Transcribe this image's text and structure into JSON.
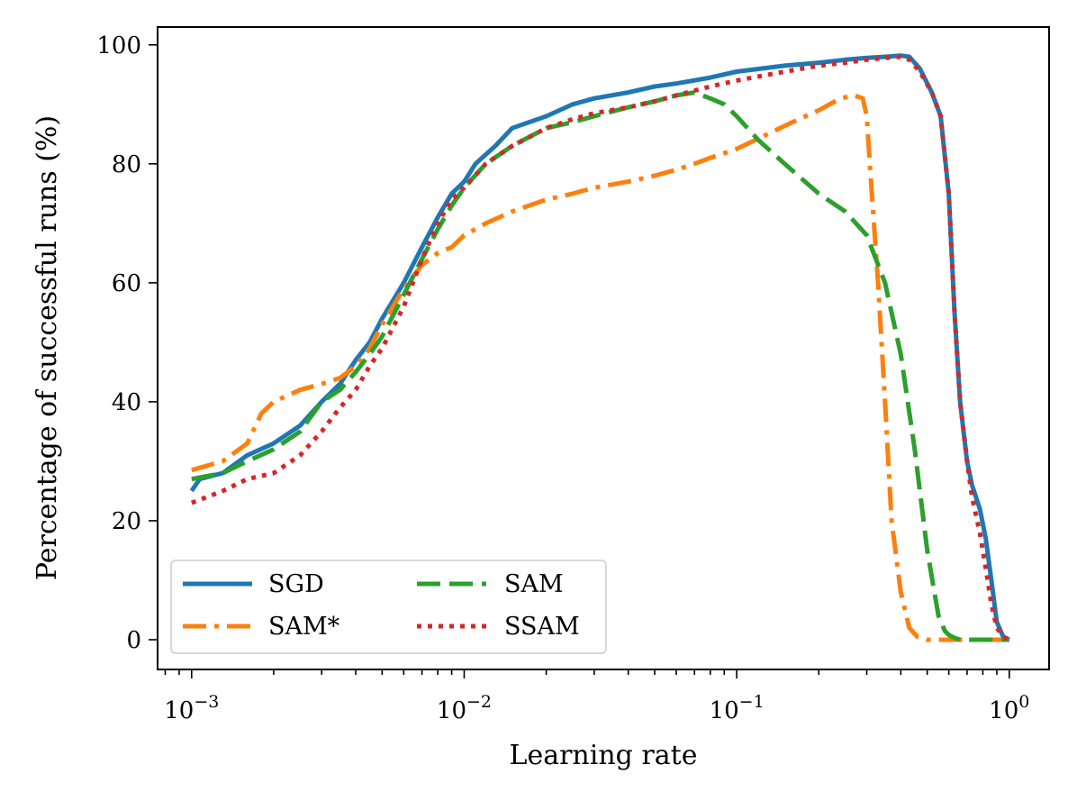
{
  "chart_data": {
    "type": "line",
    "title": "",
    "xlabel": "Learning rate",
    "ylabel": "Percentage of successful runs (%)",
    "xscale": "log",
    "xlim": [
      0.00075,
      1.4
    ],
    "ylim": [
      -5,
      103
    ],
    "xticks": [
      {
        "value": 0.001,
        "base": "10",
        "exp": "−3"
      },
      {
        "value": 0.01,
        "base": "10",
        "exp": "−2"
      },
      {
        "value": 0.1,
        "base": "10",
        "exp": "−1"
      },
      {
        "value": 1,
        "base": "10",
        "exp": "0"
      }
    ],
    "yticks": [
      {
        "value": 0,
        "label": "0"
      },
      {
        "value": 20,
        "label": "20"
      },
      {
        "value": 40,
        "label": "40"
      },
      {
        "value": 60,
        "label": "60"
      },
      {
        "value": 80,
        "label": "80"
      },
      {
        "value": 100,
        "label": "100"
      }
    ],
    "legend_position": "lower-left",
    "series": [
      {
        "name": "SGD",
        "color": "#1f77b4",
        "style": "solid",
        "x": [
          0.001,
          0.00107,
          0.0013,
          0.0016,
          0.002,
          0.0025,
          0.003,
          0.0035,
          0.004,
          0.0045,
          0.005,
          0.006,
          0.007,
          0.008,
          0.009,
          0.01,
          0.011,
          0.013,
          0.015,
          0.02,
          0.025,
          0.03,
          0.04,
          0.05,
          0.06,
          0.08,
          0.1,
          0.15,
          0.2,
          0.25,
          0.3,
          0.35,
          0.4,
          0.43,
          0.47,
          0.52,
          0.56,
          0.6,
          0.63,
          0.66,
          0.7,
          0.73,
          0.78,
          0.82,
          0.86,
          0.9,
          0.95,
          1.0
        ],
        "y": [
          25,
          27,
          28,
          31,
          33,
          36,
          40,
          43,
          47,
          50,
          54,
          60,
          66,
          71,
          75,
          77,
          80,
          83,
          86,
          88,
          90,
          91,
          92,
          93,
          93.5,
          94.5,
          95.5,
          96.5,
          97,
          97.5,
          97.8,
          98,
          98.2,
          98,
          96,
          92,
          88,
          75,
          55,
          40,
          30,
          26,
          22,
          17,
          10,
          3,
          0.5,
          0
        ]
      },
      {
        "name": "SAM*",
        "color": "#ff7f0e",
        "style": "dashdot",
        "x": [
          0.001,
          0.0013,
          0.0016,
          0.0018,
          0.002,
          0.0025,
          0.003,
          0.0035,
          0.004,
          0.0045,
          0.005,
          0.006,
          0.007,
          0.008,
          0.009,
          0.01,
          0.012,
          0.015,
          0.02,
          0.025,
          0.03,
          0.04,
          0.05,
          0.06,
          0.07,
          0.08,
          0.1,
          0.13,
          0.16,
          0.2,
          0.24,
          0.27,
          0.29,
          0.3,
          0.31,
          0.33,
          0.35,
          0.37,
          0.4,
          0.43,
          0.46,
          0.5,
          0.55,
          0.65,
          0.8,
          1.0
        ],
        "y": [
          28.5,
          30,
          33,
          38,
          40,
          42,
          43,
          44,
          46,
          49,
          53,
          59,
          63,
          65,
          66,
          68,
          70,
          72,
          74,
          75,
          76,
          77,
          78,
          79,
          80,
          81,
          82.5,
          85,
          87,
          89,
          91,
          91.5,
          91,
          88,
          78,
          60,
          40,
          20,
          8,
          2,
          0.5,
          0,
          0,
          0,
          0,
          0
        ]
      },
      {
        "name": "SAM",
        "color": "#2ca02c",
        "style": "dashed",
        "x": [
          0.001,
          0.0013,
          0.0016,
          0.002,
          0.0025,
          0.003,
          0.0035,
          0.004,
          0.0045,
          0.005,
          0.006,
          0.007,
          0.008,
          0.009,
          0.01,
          0.012,
          0.015,
          0.02,
          0.025,
          0.03,
          0.04,
          0.05,
          0.06,
          0.07,
          0.08,
          0.09,
          0.1,
          0.12,
          0.15,
          0.2,
          0.25,
          0.3,
          0.35,
          0.4,
          0.45,
          0.5,
          0.55,
          0.58,
          0.6,
          0.63,
          0.66,
          0.7,
          0.8,
          0.9,
          1.0
        ],
        "y": [
          27,
          28,
          30,
          32,
          35,
          40,
          42,
          45,
          48,
          51,
          58,
          64,
          69,
          73,
          76,
          80,
          83,
          86,
          87,
          88,
          89.5,
          90.5,
          91.5,
          92,
          91,
          90,
          88,
          84,
          80,
          75,
          72,
          68,
          60,
          48,
          32,
          15,
          4,
          1.5,
          0.8,
          0.3,
          0,
          0,
          0,
          0,
          0
        ]
      },
      {
        "name": "SSAM",
        "color": "#d62728",
        "style": "dotted",
        "x": [
          0.001,
          0.0013,
          0.0016,
          0.002,
          0.0025,
          0.003,
          0.0035,
          0.004,
          0.0045,
          0.005,
          0.006,
          0.007,
          0.008,
          0.009,
          0.01,
          0.012,
          0.015,
          0.02,
          0.025,
          0.03,
          0.04,
          0.05,
          0.06,
          0.08,
          0.1,
          0.15,
          0.2,
          0.25,
          0.3,
          0.35,
          0.4,
          0.43,
          0.47,
          0.52,
          0.56,
          0.6,
          0.63,
          0.66,
          0.7,
          0.73,
          0.78,
          0.82,
          0.86,
          0.9,
          0.95,
          1.0
        ],
        "y": [
          23,
          25,
          27,
          28,
          31,
          35,
          39,
          42,
          46,
          49,
          56,
          64,
          70,
          74,
          76,
          80,
          83,
          86,
          87.5,
          88.5,
          89.5,
          90.5,
          91.5,
          93,
          94,
          95.5,
          96.5,
          97,
          97.5,
          97.8,
          98,
          97.5,
          95.5,
          92,
          88,
          75,
          55,
          40,
          30,
          24,
          18,
          12,
          6,
          2,
          0.5,
          0
        ]
      }
    ]
  }
}
